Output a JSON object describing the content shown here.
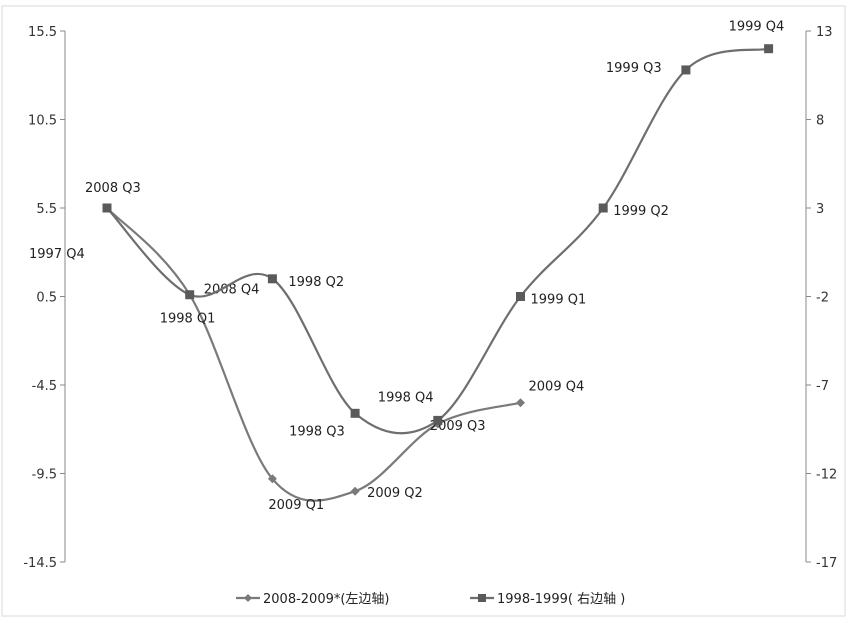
{
  "chart_data": {
    "type": "line",
    "title": "",
    "left_axis": {
      "label": "",
      "ylim": [
        -14.5,
        15.5
      ],
      "ticks": [
        "15.5",
        "10.5",
        "5.5",
        "0.5",
        "-4.5",
        "-9.5",
        "-14.5"
      ]
    },
    "right_axis": {
      "label": "",
      "ylim": [
        -17,
        13
      ],
      "ticks": [
        "13",
        "8",
        "3",
        "-2",
        "-7",
        "-12",
        "-17"
      ]
    },
    "grid": false,
    "legend_position": "bottom",
    "series": [
      {
        "name": "2008-2009*(左边轴)",
        "axis": "left",
        "marker": "diamond",
        "color": "#7a7a7a",
        "x": [
          0,
          1,
          2,
          3,
          4,
          5
        ],
        "points": [
          {
            "label": "2008 Q3",
            "value": 5.5
          },
          {
            "label": "2008 Q4",
            "value": 0.6
          },
          {
            "label": "2009 Q1",
            "value": -9.8
          },
          {
            "label": "2009 Q2",
            "value": -10.5
          },
          {
            "label": "2009 Q3",
            "value": -6.7
          },
          {
            "label": "2009 Q4",
            "value": -5.5
          }
        ]
      },
      {
        "name": "1998-1999( 右边轴 )",
        "axis": "right",
        "marker": "square",
        "color": "#6e6e6e",
        "x": [
          0,
          1,
          2,
          3,
          4,
          5,
          6,
          7,
          8
        ],
        "points": [
          {
            "label": "1997 Q4",
            "value": 3.0
          },
          {
            "label": "1998 Q1",
            "value": -1.9
          },
          {
            "label": "1998 Q2",
            "value": -1.0
          },
          {
            "label": "1998 Q3",
            "value": -8.6
          },
          {
            "label": "1998 Q4",
            "value": -9.0
          },
          {
            "label": "1999 Q1",
            "value": -2.0
          },
          {
            "label": "1999 Q2",
            "value": 3.0
          },
          {
            "label": "1999 Q3",
            "value": 10.8
          },
          {
            "label": "1999 Q4",
            "value": 12.0
          }
        ]
      }
    ]
  }
}
